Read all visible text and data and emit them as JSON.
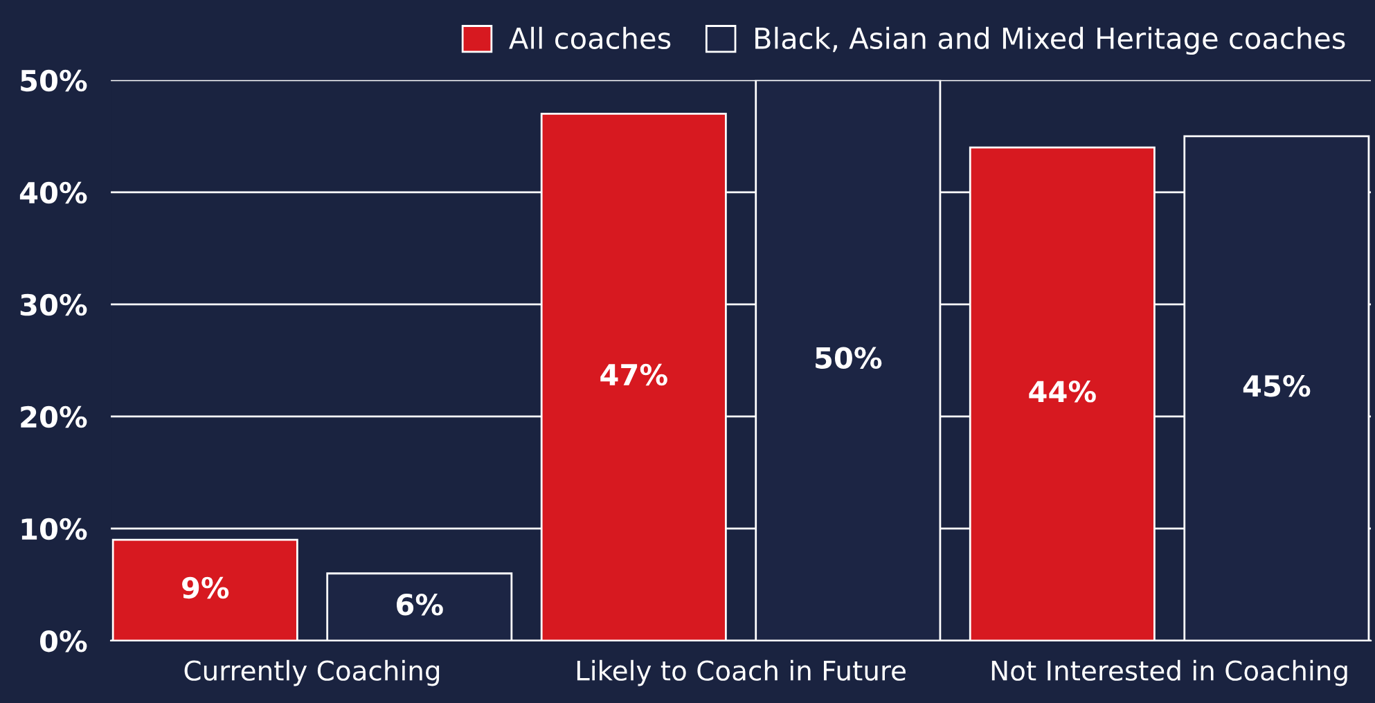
{
  "chart_data": {
    "type": "bar",
    "categories": [
      "Currently Coaching",
      "Likely to Coach in Future",
      "Not Interested in Coaching"
    ],
    "series": [
      {
        "name": "All coaches",
        "color": "#d71920",
        "values": [
          9,
          47,
          44
        ],
        "value_labels": [
          "9%",
          "47%",
          "44%"
        ]
      },
      {
        "name": "Black, Asian and Mixed Heritage coaches",
        "color": "#1c2544",
        "values": [
          6,
          50,
          45
        ],
        "value_labels": [
          "6%",
          "50%",
          "45%"
        ]
      }
    ],
    "ylim": [
      0,
      50
    ],
    "yticks": [
      {
        "value": 0,
        "label": "0%"
      },
      {
        "value": 10,
        "label": "10%"
      },
      {
        "value": 20,
        "label": "20%"
      },
      {
        "value": 30,
        "label": "30%"
      },
      {
        "value": 40,
        "label": "40%"
      },
      {
        "value": 50,
        "label": "50%"
      }
    ],
    "grid": "y",
    "legend": "top right"
  }
}
